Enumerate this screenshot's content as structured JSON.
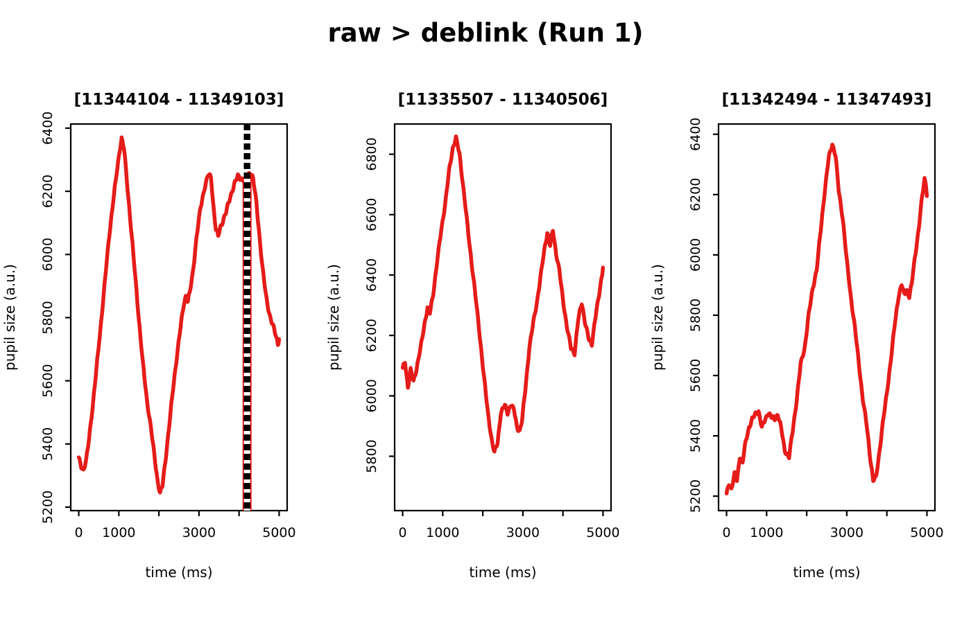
{
  "main_title": "raw > deblink (Run 1)",
  "colors": {
    "trace": "#e51c19",
    "axis": "#000000",
    "marker_black": "#000000",
    "marker_white": "#ffffff",
    "background": "#ffffff"
  },
  "chart_data": [
    {
      "type": "line",
      "title": "[11344104 - 11349103]",
      "xlabel": "time (ms)",
      "ylabel": "pupil size (a.u.)",
      "xlim": [
        -200,
        5200
      ],
      "ylim": [
        5189,
        6413
      ],
      "xticks": [
        0,
        1000,
        2000,
        3000,
        4000,
        5000
      ],
      "xtick_labels": [
        "0",
        "1000",
        "",
        "3000",
        "",
        "5000"
      ],
      "yticks": [
        5200,
        5400,
        5600,
        5800,
        6000,
        6200,
        6400
      ],
      "grid": false,
      "legend": null,
      "blink_marker": {
        "x": 4200,
        "drop_top": 6245
      },
      "series": [
        {
          "name": "pupil size",
          "x": [
            0,
            60,
            120,
            190,
            260,
            360,
            460,
            560,
            660,
            760,
            860,
            950,
            1020,
            1070,
            1130,
            1200,
            1300,
            1400,
            1500,
            1600,
            1700,
            1800,
            1890,
            1960,
            2030,
            2090,
            2160,
            2250,
            2350,
            2450,
            2550,
            2620,
            2670,
            2720,
            2770,
            2840,
            2940,
            3040,
            3140,
            3230,
            3300,
            3360,
            3420,
            3480,
            3540,
            3600,
            3680,
            3780,
            3880,
            3970,
            4060,
            4140,
            4210,
            4280,
            4350,
            4430,
            4510,
            4590,
            4680,
            4770,
            4860,
            4930,
            4970,
            5000
          ],
          "y": [
            5355,
            5330,
            5318,
            5350,
            5420,
            5535,
            5660,
            5790,
            5925,
            6060,
            6170,
            6260,
            6330,
            6368,
            6335,
            6235,
            6090,
            5945,
            5795,
            5655,
            5540,
            5452,
            5360,
            5290,
            5243,
            5268,
            5345,
            5450,
            5570,
            5680,
            5778,
            5842,
            5868,
            5852,
            5878,
            5935,
            6055,
            6148,
            6212,
            6252,
            6245,
            6155,
            6080,
            6058,
            6088,
            6108,
            6135,
            6182,
            6222,
            6248,
            6240,
            6233,
            6247,
            6262,
            6242,
            6165,
            6058,
            5952,
            5862,
            5805,
            5768,
            5738,
            5716,
            5732
          ]
        }
      ]
    },
    {
      "type": "line",
      "title": "[11335507 - 11340506]",
      "xlabel": "time (ms)",
      "ylabel": "pupil size (a.u.)",
      "xlim": [
        -200,
        5200
      ],
      "ylim": [
        5620,
        6900
      ],
      "xticks": [
        0,
        1000,
        2000,
        3000,
        4000,
        5000
      ],
      "xtick_labels": [
        "0",
        "1000",
        "",
        "3000",
        "",
        "5000"
      ],
      "yticks": [
        5800,
        6000,
        6200,
        6400,
        6600,
        6800
      ],
      "grid": false,
      "legend": null,
      "blink_marker": null,
      "series": [
        {
          "name": "pupil size",
          "x": [
            0,
            60,
            130,
            200,
            270,
            350,
            450,
            550,
            620,
            680,
            760,
            860,
            960,
            1060,
            1160,
            1250,
            1330,
            1420,
            1540,
            1660,
            1780,
            1900,
            2020,
            2130,
            2230,
            2290,
            2370,
            2450,
            2550,
            2620,
            2700,
            2780,
            2850,
            2920,
            2980,
            3060,
            3160,
            3260,
            3360,
            3460,
            3550,
            3610,
            3680,
            3750,
            3830,
            3910,
            4000,
            4100,
            4200,
            4290,
            4380,
            4470,
            4560,
            4650,
            4720,
            4800,
            4900,
            5000
          ],
          "y": [
            6090,
            6115,
            6028,
            6085,
            6048,
            6092,
            6160,
            6242,
            6292,
            6274,
            6335,
            6445,
            6545,
            6635,
            6745,
            6820,
            6855,
            6798,
            6660,
            6510,
            6375,
            6230,
            6075,
            5940,
            5848,
            5812,
            5845,
            5945,
            5968,
            5944,
            5972,
            5952,
            5898,
            5884,
            5918,
            6020,
            6158,
            6242,
            6318,
            6412,
            6496,
            6540,
            6498,
            6549,
            6472,
            6415,
            6318,
            6228,
            6158,
            6142,
            6252,
            6308,
            6238,
            6185,
            6172,
            6252,
            6332,
            6425
          ]
        }
      ]
    },
    {
      "type": "line",
      "title": "[11342494 - 11347493]",
      "xlabel": "time (ms)",
      "ylabel": "pupil size (a.u.)",
      "xlim": [
        -200,
        5200
      ],
      "ylim": [
        5152,
        6434
      ],
      "xticks": [
        0,
        1000,
        2000,
        3000,
        4000,
        5000
      ],
      "xtick_labels": [
        "0",
        "1000",
        "",
        "3000",
        "",
        "5000"
      ],
      "yticks": [
        5200,
        5400,
        5600,
        5800,
        6000,
        6200,
        6400
      ],
      "grid": false,
      "legend": null,
      "blink_marker": null,
      "series": [
        {
          "name": "pupil size",
          "x": [
            0,
            60,
            120,
            200,
            260,
            330,
            400,
            480,
            560,
            640,
            720,
            800,
            880,
            960,
            1040,
            1120,
            1200,
            1280,
            1360,
            1450,
            1560,
            1650,
            1750,
            1850,
            1950,
            2050,
            2150,
            2250,
            2350,
            2450,
            2550,
            2640,
            2720,
            2800,
            2900,
            3000,
            3100,
            3200,
            3300,
            3400,
            3500,
            3590,
            3660,
            3730,
            3800,
            3900,
            4000,
            4100,
            4200,
            4290,
            4370,
            4430,
            4500,
            4560,
            4620,
            4700,
            4800,
            4880,
            4940,
            4975,
            5000
          ],
          "y": [
            5206,
            5242,
            5224,
            5272,
            5250,
            5332,
            5312,
            5382,
            5428,
            5455,
            5472,
            5482,
            5428,
            5452,
            5478,
            5462,
            5455,
            5472,
            5428,
            5352,
            5330,
            5415,
            5520,
            5638,
            5692,
            5802,
            5888,
            5952,
            6082,
            6212,
            6322,
            6368,
            6330,
            6212,
            6122,
            5982,
            5862,
            5762,
            5642,
            5522,
            5432,
            5322,
            5252,
            5262,
            5332,
            5442,
            5542,
            5652,
            5772,
            5862,
            5902,
            5868,
            5882,
            5862,
            5902,
            5992,
            6092,
            6192,
            6252,
            6235,
            6195
          ]
        }
      ]
    }
  ]
}
